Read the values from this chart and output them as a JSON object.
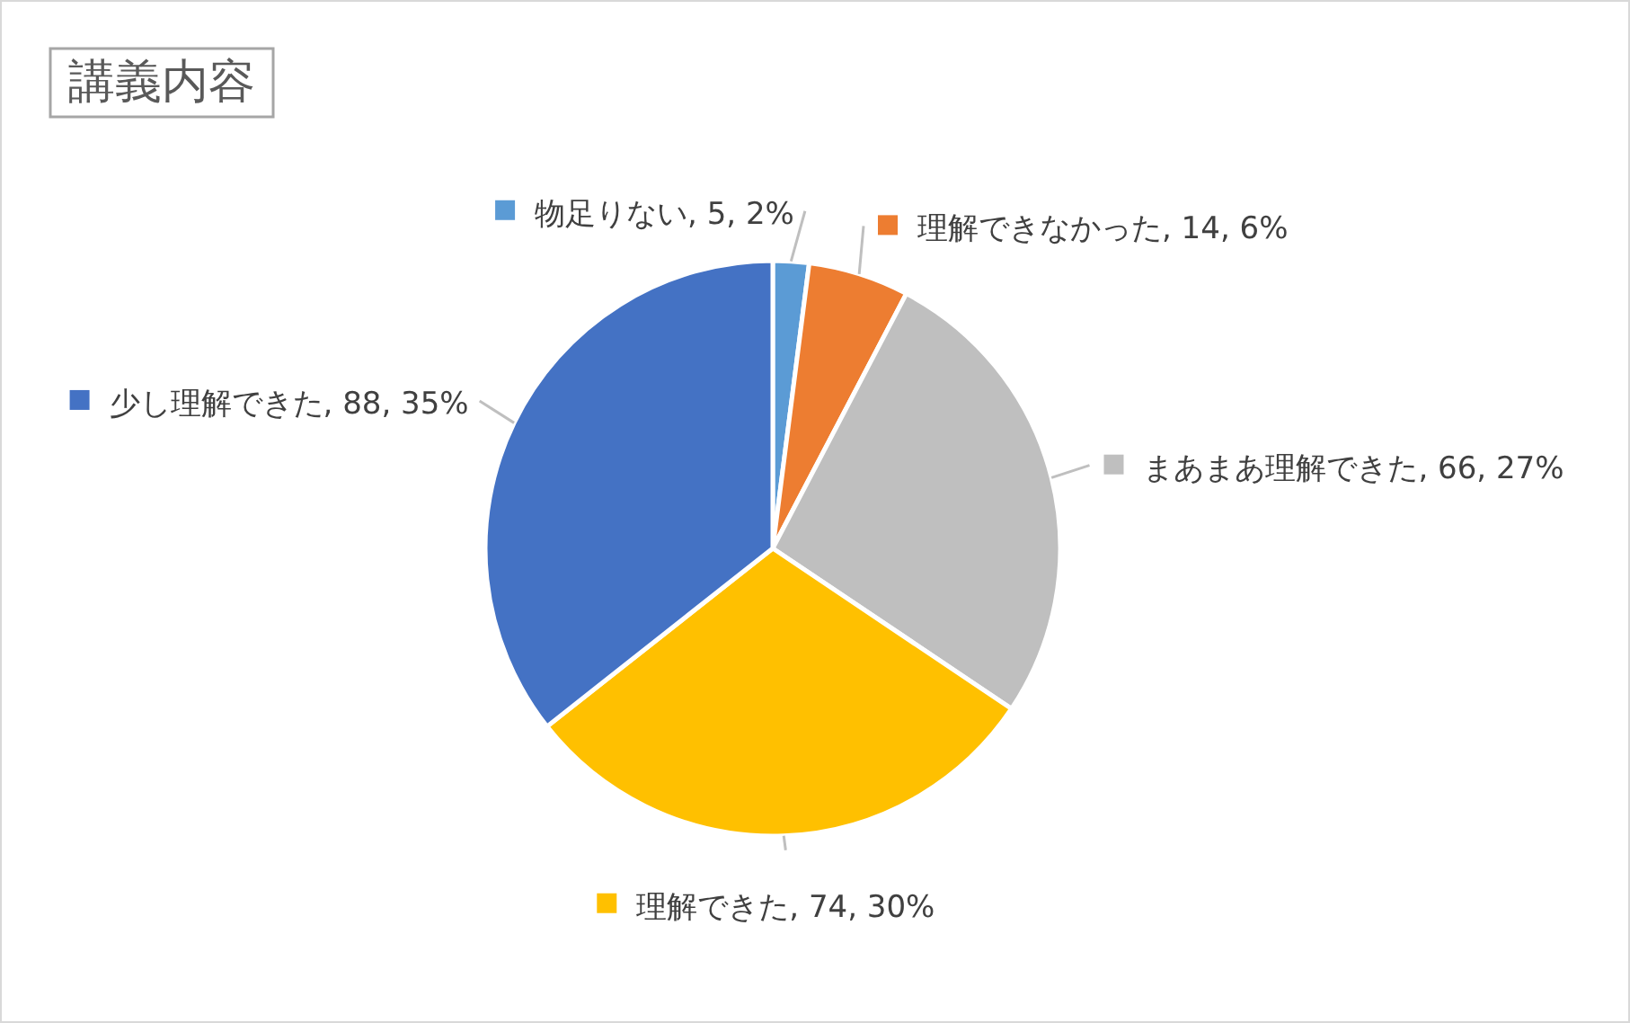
{
  "chart_data": {
    "type": "pie",
    "title": "講義内容",
    "categories": [
      "物足りない",
      "理解できなかった",
      "まあまあ理解できた",
      "理解できた",
      "少し理解できた"
    ],
    "values": [
      5,
      14,
      66,
      74,
      88
    ],
    "colors": [
      "#5b9bd5",
      "#ed7d31",
      "#bfbfbf",
      "#ffc000",
      "#4472c4"
    ],
    "legend": "bottom left",
    "value_labels": [
      ", 5, 2%",
      ", 14, 6%",
      ", 66, 27%",
      ", 74, 30%",
      ", 88, 35%"
    ]
  }
}
